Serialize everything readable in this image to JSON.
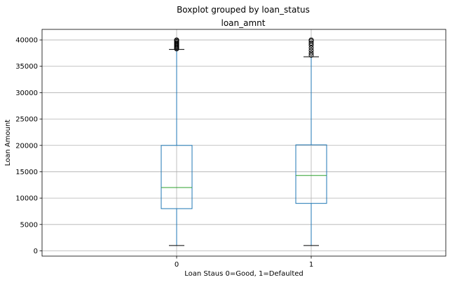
{
  "chart_data": {
    "type": "boxplot",
    "suptitle": "Boxplot grouped by loan_status",
    "title": "loan_amnt",
    "xlabel": "Loan Staus 0=Good, 1=Defaulted",
    "ylabel": "Loan Amount",
    "categories": [
      "0",
      "1"
    ],
    "ylim": [
      -1000,
      42000
    ],
    "yticks": [
      0,
      5000,
      10000,
      15000,
      20000,
      25000,
      30000,
      35000,
      40000
    ],
    "ytick_labels": [
      "0",
      "5000",
      "10000",
      "15000",
      "20000",
      "25000",
      "30000",
      "35000",
      "40000"
    ],
    "grid": true,
    "boxes": [
      {
        "category": "0",
        "whisker_low": 1000,
        "q1": 8000,
        "median": 12000,
        "q3": 20000,
        "whisker_high": 38200,
        "outliers": [
          38300,
          38500,
          38700,
          38900,
          39100,
          39300,
          39500,
          39700,
          39900,
          40000
        ]
      },
      {
        "category": "1",
        "whisker_low": 1000,
        "q1": 9000,
        "median": 14300,
        "q3": 20100,
        "whisker_high": 36800,
        "outliers": [
          37100,
          37500,
          38000,
          38500,
          39000,
          39400,
          39800,
          40000
        ]
      }
    ],
    "colors": {
      "box": "#1f77b4",
      "median": "#2ca02c",
      "whisker_cap": "#000000",
      "grid": "#b0b0b0",
      "outlier": "#000000"
    }
  }
}
